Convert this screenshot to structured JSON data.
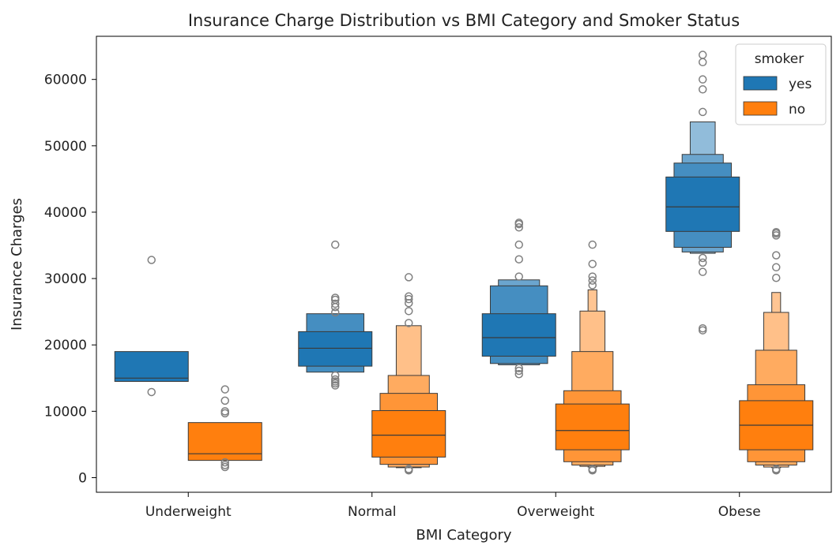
{
  "chart_data": {
    "type": "boxen",
    "title": "Insurance Charge Distribution vs BMI Category and Smoker Status",
    "xlabel": "BMI Category",
    "ylabel": "Insurance Charges",
    "categories": [
      "Underweight",
      "Normal",
      "Overweight",
      "Obese"
    ],
    "ylim": [
      -2200,
      66500
    ],
    "yticks": [
      0,
      10000,
      20000,
      30000,
      40000,
      50000,
      60000
    ],
    "grid": false,
    "legend": {
      "title": "smoker",
      "position": "top-right"
    },
    "series": [
      {
        "name": "yes",
        "color": "#1f77b4",
        "groups": [
          {
            "median": 15000,
            "boxes": [
              [
                14500,
                19000
              ]
            ],
            "outliers": [
              12900,
              32800
            ]
          },
          {
            "median": 19500,
            "boxes": [
              [
                16800,
                22000
              ],
              [
                15900,
                24700
              ]
            ],
            "outliers": [
              13900,
              14200,
              14500,
              14800,
              15400,
              24900,
              25700,
              26200,
              26800,
              27100,
              35100
            ]
          },
          {
            "median": 21100,
            "boxes": [
              [
                18300,
                24700
              ],
              [
                17200,
                28900
              ],
              [
                17000,
                29800
              ]
            ],
            "outliers": [
              15600,
              16100,
              16500,
              30300,
              32900,
              35100,
              37700,
              38200,
              38400
            ]
          },
          {
            "median": 40800,
            "boxes": [
              [
                37100,
                45300
              ],
              [
                34700,
                47400
              ],
              [
                34000,
                48700
              ],
              [
                33800,
                53600
              ]
            ],
            "outliers": [
              22200,
              22500,
              31000,
              32400,
              33100,
              55100,
              58500,
              60000,
              62600,
              63700
            ]
          }
        ]
      },
      {
        "name": "no",
        "color": "#ff7f0e",
        "groups": [
          {
            "median": 3600,
            "boxes": [
              [
                2600,
                8300
              ]
            ],
            "outliers": [
              1600,
              1900,
              2300,
              9700,
              10000,
              11600,
              13300
            ]
          },
          {
            "median": 6400,
            "boxes": [
              [
                3100,
                10100
              ],
              [
                2000,
                12700
              ],
              [
                1600,
                15400
              ],
              [
                1500,
                22900
              ]
            ],
            "outliers": [
              1100,
              1200,
              1300,
              23300,
              25100,
              26300,
              26900,
              27300,
              30200
            ]
          },
          {
            "median": 7100,
            "boxes": [
              [
                4200,
                11100
              ],
              [
                2400,
                13100
              ],
              [
                1900,
                19000
              ],
              [
                1700,
                25100
              ],
              [
                1600,
                28300
              ]
            ],
            "outliers": [
              1100,
              1200,
              1300,
              29000,
              29700,
              30300,
              32200,
              35100
            ]
          },
          {
            "median": 7900,
            "boxes": [
              [
                4200,
                11600
              ],
              [
                2400,
                14000
              ],
              [
                1900,
                19200
              ],
              [
                1600,
                24900
              ],
              [
                1500,
                27900
              ],
              [
                1400,
                29200
              ]
            ],
            "outliers": [
              1100,
              1200,
              1300,
              30100,
              31700,
              33500,
              36500,
              36800,
              37000
            ]
          }
        ]
      }
    ]
  }
}
